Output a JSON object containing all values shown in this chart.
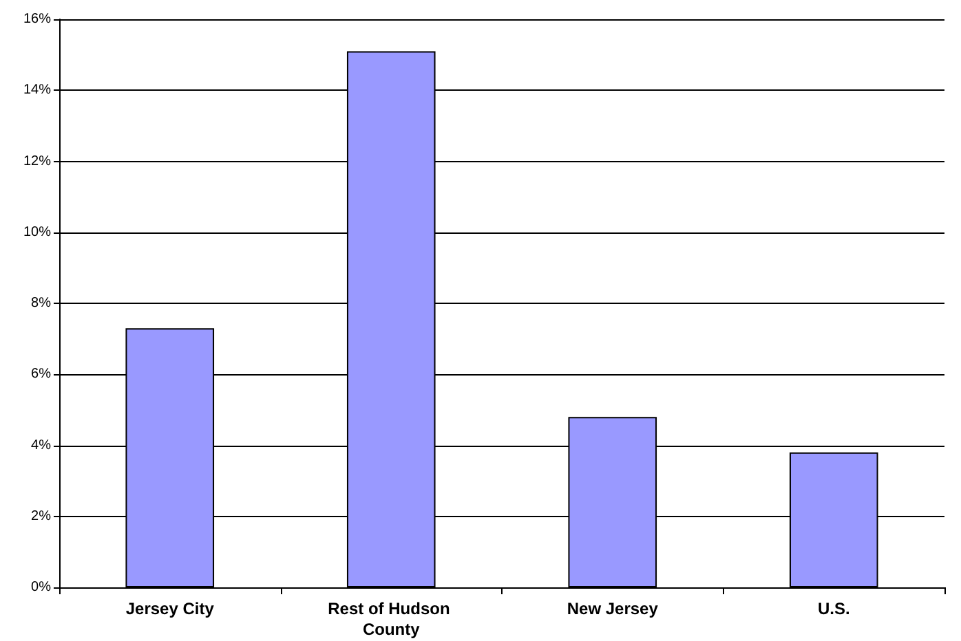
{
  "chart_data": {
    "type": "bar",
    "categories": [
      "Jersey City",
      "Rest of Hudson County",
      "New Jersey",
      "U.S."
    ],
    "values": [
      7.3,
      15.1,
      4.8,
      3.8
    ],
    "color": "#9999ff",
    "ylim": [
      0,
      16
    ],
    "yticks": [
      {
        "value": 0,
        "label": "0%"
      },
      {
        "value": 2,
        "label": "2%"
      },
      {
        "value": 4,
        "label": "4%"
      },
      {
        "value": 6,
        "label": "6%"
      },
      {
        "value": 8,
        "label": "8%"
      },
      {
        "value": 10,
        "label": "10%"
      },
      {
        "value": 12,
        "label": "12%"
      },
      {
        "value": 14,
        "label": "14%"
      },
      {
        "value": 16,
        "label": "16%"
      }
    ],
    "grid": "y"
  }
}
